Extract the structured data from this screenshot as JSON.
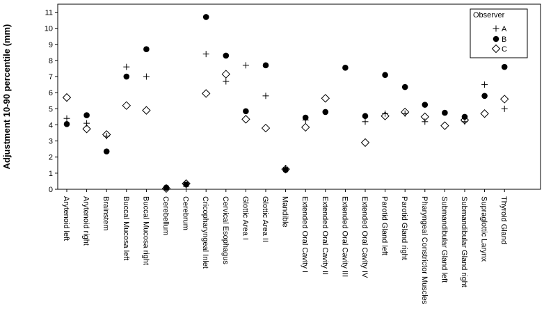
{
  "chart_data": {
    "type": "scatter",
    "title": "",
    "xlabel": "",
    "ylabel": "Adjustment 10-90 percentile (mm)",
    "ylim": [
      0,
      11
    ],
    "yticks": [
      "0",
      "1",
      "2",
      "3",
      "4",
      "5",
      "6",
      "7",
      "8",
      "9",
      "10",
      "11"
    ],
    "grid": false,
    "legend_position": "top-right",
    "legend_title": "Observer",
    "categories": [
      "Arytenoid left",
      "Arytenoid right",
      "Brainstem",
      "Buccal Mucosa left",
      "Buccal Mucosa right",
      "Cerebellum",
      "Cerebrum",
      "Cricopharyngeal Inlet",
      "Cervical Esophagus",
      "Glottic Area I",
      "Glottic Area II",
      "Mandible",
      "Extended Oral Cavity I",
      "Extended Oral Cavity II",
      "Extended Oral Cavity III",
      "Extended Oral Cavity IV",
      "Parotid Gland left",
      "Parotid Gland right",
      "Pharyngeal Constrictor Muscles",
      "Submandibular Gland left",
      "Submandibular Gland right",
      "Supraglottic Larynx",
      "Thyroid Gland"
    ],
    "series": [
      {
        "name": "A",
        "marker": "plus",
        "values": [
          4.4,
          4.1,
          3.3,
          7.6,
          7.0,
          0.1,
          0.2,
          8.4,
          6.7,
          7.7,
          5.8,
          1.3,
          4.3,
          null,
          null,
          4.2,
          4.7,
          4.7,
          4.2,
          null,
          4.2,
          6.5,
          5.0
        ]
      },
      {
        "name": "B",
        "marker": "circle",
        "values": [
          4.05,
          4.6,
          2.35,
          7.0,
          8.7,
          0.1,
          0.3,
          10.7,
          8.3,
          4.85,
          7.7,
          1.2,
          4.45,
          4.8,
          7.55,
          4.55,
          7.1,
          6.35,
          5.25,
          4.75,
          4.5,
          5.8,
          7.6
        ]
      },
      {
        "name": "C",
        "marker": "diamond",
        "values": [
          5.7,
          3.75,
          3.4,
          5.2,
          4.9,
          0.05,
          0.35,
          5.95,
          7.15,
          4.35,
          3.8,
          1.25,
          3.85,
          5.65,
          null,
          2.9,
          4.55,
          4.8,
          4.5,
          3.95,
          4.3,
          4.7,
          5.6
        ]
      }
    ]
  }
}
